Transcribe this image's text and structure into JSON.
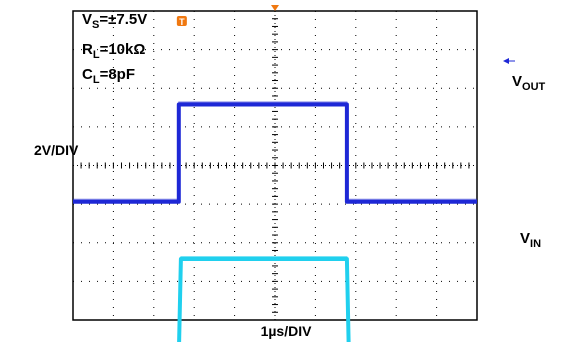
{
  "chart_data": {
    "type": "line",
    "x_label": "1µs/DIV",
    "y_label": "2V/DIV",
    "x_divisions": 10,
    "y_divisions": 8,
    "x_range_us": [
      0,
      10
    ],
    "conditions": {
      "vs": {
        "name": "V",
        "sub": "S",
        "value": "=±7.5V"
      },
      "rl": {
        "name": "R",
        "sub": "L",
        "value": "=10kΩ"
      },
      "cl": {
        "name": "C",
        "sub": "L",
        "value": "=8pF"
      }
    },
    "series": [
      {
        "name": "VOUT",
        "label_main": "V",
        "label_sub": "OUT",
        "color": "#1e28d6",
        "x_us": [
          0,
          2.62,
          2.62,
          2.72,
          6.7,
          6.78,
          6.78,
          10
        ],
        "y_div": [
          0,
          0,
          2.52,
          2.52,
          2.52,
          2.52,
          0,
          0
        ]
      },
      {
        "name": "VIN",
        "label_main": "V",
        "label_sub": "IN",
        "color": "#20d0ee",
        "x_us": [
          0,
          2.62,
          2.67,
          2.72,
          6.7,
          6.78,
          6.83,
          10
        ],
        "y_div": [
          0,
          0,
          2.52,
          2.52,
          2.52,
          2.52,
          0,
          0
        ]
      }
    ],
    "series_zero_div": [
      4.94,
      8.94
    ],
    "trigger_marker": {
      "text": "T",
      "color": "#f07810"
    },
    "marker_color": "#f07810",
    "ref_marker_color": "#1e28d6"
  }
}
